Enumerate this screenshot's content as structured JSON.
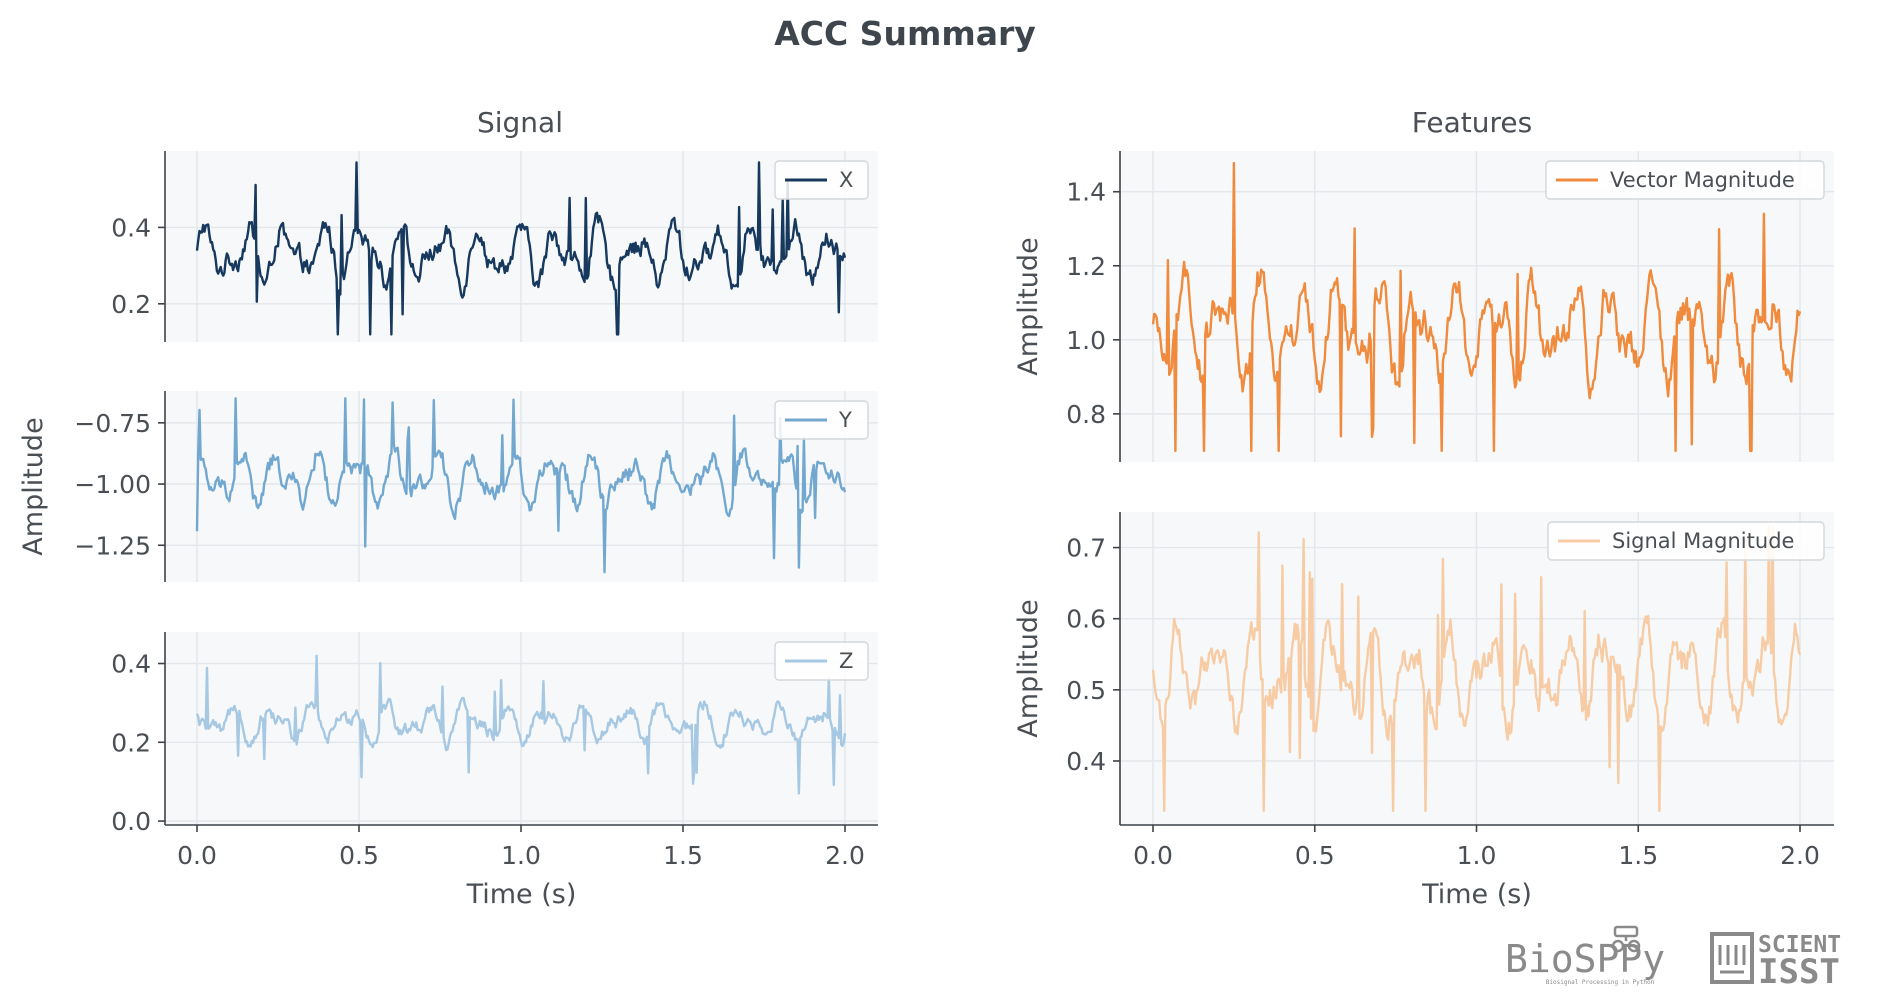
{
  "page": {
    "title": "ACC Summary"
  },
  "logos": {
    "biosppy": "BioSPPy",
    "biosppy_sub": "Biosignal Processing in Python",
    "scientisst_top": "SCIENT",
    "scientisst_bottom": "ISST"
  },
  "colors": {
    "x": "#17395e",
    "y": "#72a8d0",
    "z": "#a6c8e2",
    "vm": "#f08a3c",
    "sm": "#f7cca4",
    "panel": "#f6f8fa"
  },
  "chart_data": [
    {
      "type": "line",
      "group": "Signal",
      "subtitle": "Signal",
      "series": [
        {
          "name": "X"
        }
      ],
      "x_range": [
        0,
        2
      ],
      "ylim": [
        0.1,
        0.6
      ],
      "yticks": [
        "0.2",
        "0.4"
      ],
      "ytick_values": [
        0.2,
        0.4
      ],
      "xlabel": "",
      "ylabel": "",
      "legend": "top-right",
      "grid": true,
      "mean": 0.33,
      "amp": 0.09,
      "min": 0.12,
      "max": 0.57
    },
    {
      "type": "line",
      "group": "Signal",
      "series": [
        {
          "name": "Y"
        }
      ],
      "x_range": [
        0,
        2
      ],
      "ylim": [
        -1.4,
        -0.62
      ],
      "yticks": [
        "−0.75",
        "−1.00",
        "−1.25"
      ],
      "ytick_values": [
        -0.75,
        -1.0,
        -1.25
      ],
      "xlabel": "",
      "ylabel": "Amplitude",
      "legend": "top-right",
      "grid": true,
      "mean": -0.98,
      "amp": 0.13,
      "min": -1.36,
      "max": -0.65
    },
    {
      "type": "line",
      "group": "Signal",
      "series": [
        {
          "name": "Z"
        }
      ],
      "x_range": [
        0,
        2
      ],
      "ylim": [
        -0.01,
        0.48
      ],
      "yticks": [
        "0.0",
        "0.2",
        "0.4"
      ],
      "ytick_values": [
        0.0,
        0.2,
        0.4
      ],
      "xticks": [
        "0.0",
        "0.5",
        "1.0",
        "1.5",
        "2.0"
      ],
      "xtick_values": [
        0,
        0.5,
        1,
        1.5,
        2
      ],
      "xlabel": "Time (s)",
      "ylabel": "",
      "legend": "top-right",
      "grid": true,
      "mean": 0.25,
      "amp": 0.06,
      "min": 0.01,
      "max": 0.45
    },
    {
      "type": "line",
      "group": "Features",
      "subtitle": "Features",
      "series": [
        {
          "name": "Vector Magnitude"
        }
      ],
      "x_range": [
        0,
        2
      ],
      "ylim": [
        0.67,
        1.51
      ],
      "yticks": [
        "1.4",
        "1.2",
        "1.0",
        "0.8"
      ],
      "ytick_values": [
        1.4,
        1.2,
        1.0,
        0.8
      ],
      "xlabel": "",
      "ylabel": "Amplitude",
      "legend": "top-right",
      "grid": true,
      "mean": 1.02,
      "amp": 0.16,
      "min": 0.7,
      "max": 1.48
    },
    {
      "type": "line",
      "group": "Features",
      "series": [
        {
          "name": "Signal Magnitude"
        }
      ],
      "x_range": [
        0,
        2
      ],
      "ylim": [
        0.31,
        0.75
      ],
      "yticks": [
        "0.7",
        "0.6",
        "0.5",
        "0.4"
      ],
      "ytick_values": [
        0.7,
        0.6,
        0.5,
        0.4
      ],
      "xticks": [
        "0.0",
        "0.5",
        "1.0",
        "1.5",
        "2.0"
      ],
      "xtick_values": [
        0,
        0.5,
        1,
        1.5,
        2
      ],
      "xlabel": "Time (s)",
      "ylabel": "Amplitude",
      "legend": "top-right",
      "grid": true,
      "mean": 0.52,
      "amp": 0.08,
      "min": 0.33,
      "max": 0.73
    }
  ]
}
